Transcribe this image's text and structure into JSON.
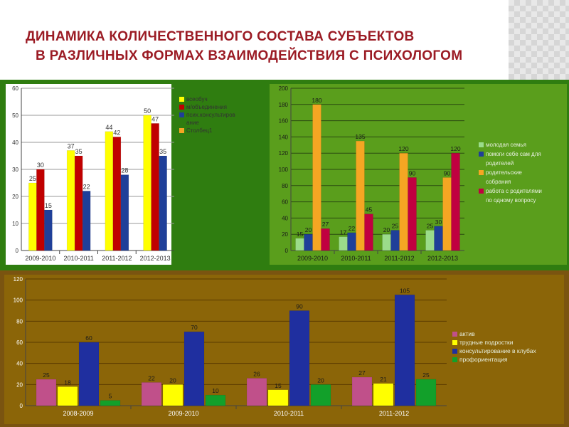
{
  "slide": {
    "title_line1": "ДИНАМИКА КОЛИЧЕСТВЕННОГО СОСТАВА СУБЪЕКТОВ",
    "title_line2": "В РАЗЛИЧНЫХ ФОРМАХ ВЗАИМОДЕЙСТВИЯ С ПСИХОЛОГОМ",
    "title_color": "#9b1b24"
  },
  "chart_data": [
    {
      "type": "bar",
      "categories": [
        "2009-2010",
        "2010-2011",
        "2011-2012",
        "2012-2013"
      ],
      "ylim": [
        0,
        60
      ],
      "yticks": [
        0,
        10,
        20,
        30,
        40,
        50,
        60
      ],
      "grid": true,
      "legend_position": "right",
      "panel_background": "#ffffff",
      "legend": [
        {
          "label": "всеобуч",
          "color": "#ffff00"
        },
        {
          "label": "м/объединения",
          "color": "#c00000"
        },
        {
          "label": "псих.консультиров\nание",
          "color": "#1f3f99"
        },
        {
          "label": "Столбец1",
          "color": "#f5a623"
        }
      ],
      "series": [
        {
          "name": "всеобуч",
          "color": "#ffff00",
          "values": [
            25,
            37,
            44,
            50
          ]
        },
        {
          "name": "м/объединения",
          "color": "#c00000",
          "values": [
            30,
            35,
            42,
            47
          ]
        },
        {
          "name": "псих.консультиров ание",
          "color": "#1f3f99",
          "values": [
            15,
            22,
            28,
            35
          ]
        }
      ]
    },
    {
      "type": "bar",
      "categories": [
        "2009-2010",
        "2010-2011",
        "2011-2012",
        "2012-2013"
      ],
      "ylim": [
        0,
        200
      ],
      "yticks": [
        0,
        20,
        40,
        60,
        80,
        100,
        120,
        140,
        160,
        180,
        200
      ],
      "grid": true,
      "legend_position": "right",
      "panel_background": "#5a9e1c",
      "legend": [
        {
          "label": "молодая семья",
          "color": "#9bdc8a"
        },
        {
          "label": "помоги себе сам для\nродителей",
          "color": "#1f3f99"
        },
        {
          "label": "родительские\nсобрания",
          "color": "#f5a623"
        },
        {
          "label": " работа с родителями\nпо одному вопросу",
          "color": "#c00040"
        }
      ],
      "series": [
        {
          "name": "молодая семья",
          "color": "#9bdc8a",
          "values": [
            15,
            17,
            20,
            25
          ]
        },
        {
          "name": "помоги себе сам для родителей",
          "color": "#1f3f99",
          "values": [
            20,
            22,
            25,
            30
          ]
        },
        {
          "name": "родительские собрания",
          "color": "#f5a623",
          "values": [
            180,
            135,
            120,
            90
          ]
        },
        {
          "name": "работа с родителями по одному вопросу",
          "color": "#c00040",
          "values": [
            27,
            45,
            90,
            120
          ]
        }
      ]
    },
    {
      "type": "bar",
      "categories": [
        "2008-2009",
        "2009-2010",
        "2010-2011",
        "2011-2012"
      ],
      "ylim": [
        0,
        120
      ],
      "yticks": [
        0,
        20,
        40,
        60,
        80,
        100,
        120
      ],
      "grid": true,
      "legend_position": "right",
      "panel_background": "#8b6508",
      "legend": [
        {
          "label": "актив",
          "color": "#c0508a"
        },
        {
          "label": "трудные подростки",
          "color": "#ffff00"
        },
        {
          "label": "консультирование в клубах",
          "color": "#1f2f9f"
        },
        {
          "label": "профориентация",
          "color": "#12a02a"
        }
      ],
      "series": [
        {
          "name": "актив",
          "color": "#c0508a",
          "values": [
            25,
            22,
            26,
            27
          ]
        },
        {
          "name": "трудные подростки",
          "color": "#ffff00",
          "values": [
            18,
            20,
            15,
            21
          ]
        },
        {
          "name": "консультирование в клубах",
          "color": "#1f2f9f",
          "values": [
            60,
            70,
            90,
            105
          ]
        },
        {
          "name": "профориентация",
          "color": "#12a02a",
          "values": [
            5,
            10,
            20,
            25
          ]
        }
      ]
    }
  ]
}
